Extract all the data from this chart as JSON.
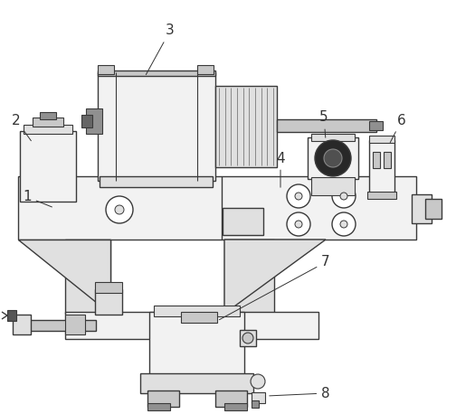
{
  "bg_color": "#ffffff",
  "lc": "#3a3a3a",
  "fc_light": "#f2f2f2",
  "fc_mid": "#e0e0e0",
  "fc_dark": "#c8c8c8",
  "fc_vdark": "#909090",
  "fc_black": "#282828",
  "figsize": [
    5.04,
    4.58
  ],
  "dpi": 100,
  "label_fs": 11,
  "ann_color": "#333333"
}
